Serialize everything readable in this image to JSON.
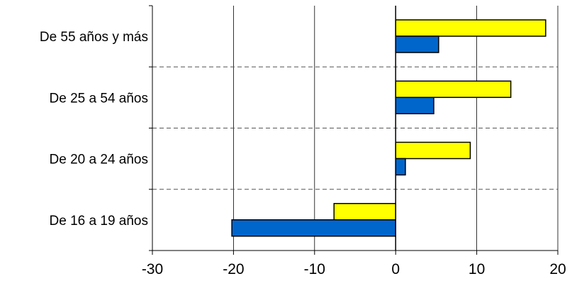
{
  "chart_data": {
    "type": "bar",
    "orientation": "horizontal",
    "categories": [
      "De 55 años y más",
      "De 25 a 54 años",
      "De 20 a 24 años",
      "De 16 a 19 años"
    ],
    "series": [
      {
        "values": [
          18.5,
          14.2,
          9.2,
          -7.6
        ],
        "color": "#ffff00"
      },
      {
        "values": [
          5.3,
          4.7,
          1.2,
          -20.2
        ],
        "color": "#0066cc"
      }
    ],
    "xlim": [
      -30,
      20
    ],
    "xticks": [
      "-30",
      "-20",
      "-10",
      "0",
      "10",
      "20"
    ],
    "grid": {
      "vertical": "solid",
      "horizontal": "dashed"
    },
    "legend": "none"
  }
}
